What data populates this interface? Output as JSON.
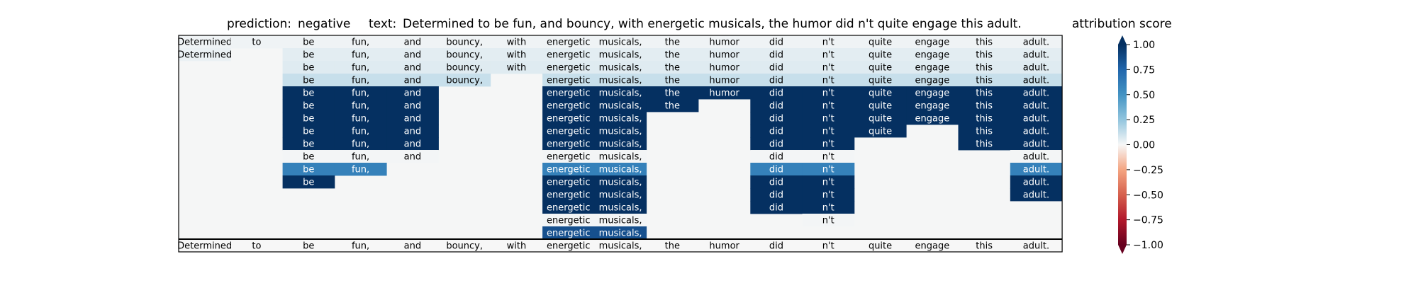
{
  "chart_data": {
    "type": "heatmap",
    "title": {
      "prediction_label": "prediction:",
      "prediction_value": "negative",
      "text_label": "text:",
      "text_value": "Determined to be fun, and bouncy, with energetic musicals, the humor did n't quite engage this adult."
    },
    "tokens": [
      "Determined",
      "to",
      "be",
      "fun,",
      "and",
      "bouncy,",
      "with",
      "energetic",
      "musicals,",
      "the",
      "humor",
      "did",
      "n't",
      "quite",
      "engage",
      "this",
      "adult."
    ],
    "rows": [
      [
        0.02,
        0.02,
        0.02,
        0.02,
        0.02,
        0.02,
        0.02,
        0.02,
        0.02,
        0.02,
        0.02,
        0.02,
        0.02,
        0.02,
        0.02,
        0.02,
        0.02
      ],
      [
        0.03,
        null,
        0.05,
        0.05,
        0.05,
        0.05,
        0.05,
        0.05,
        0.05,
        0.05,
        0.05,
        0.05,
        0.05,
        0.05,
        0.05,
        0.05,
        0.05
      ],
      [
        null,
        null,
        0.06,
        0.06,
        0.06,
        0.06,
        0.06,
        0.06,
        0.06,
        0.06,
        0.06,
        0.06,
        0.06,
        0.06,
        0.06,
        0.06,
        0.06
      ],
      [
        null,
        null,
        0.12,
        0.12,
        0.12,
        0.12,
        null,
        0.12,
        0.12,
        0.12,
        0.12,
        0.12,
        0.12,
        0.12,
        0.12,
        0.12,
        0.12
      ],
      [
        null,
        null,
        1.0,
        1.0,
        1.0,
        null,
        null,
        1.0,
        1.0,
        1.0,
        1.0,
        1.0,
        1.0,
        1.0,
        1.0,
        1.0,
        1.0
      ],
      [
        null,
        null,
        1.0,
        1.0,
        1.0,
        null,
        null,
        1.0,
        1.0,
        1.0,
        null,
        1.0,
        1.0,
        1.0,
        1.0,
        1.0,
        1.0
      ],
      [
        null,
        null,
        1.0,
        1.0,
        1.0,
        null,
        null,
        1.0,
        1.0,
        null,
        null,
        1.0,
        1.0,
        1.0,
        1.0,
        1.0,
        1.0
      ],
      [
        null,
        null,
        1.0,
        1.0,
        1.0,
        null,
        null,
        1.0,
        1.0,
        null,
        null,
        1.0,
        1.0,
        1.0,
        null,
        1.0,
        1.0
      ],
      [
        null,
        null,
        1.0,
        1.0,
        1.0,
        null,
        null,
        1.0,
        1.0,
        null,
        null,
        1.0,
        1.0,
        null,
        null,
        1.0,
        1.0
      ],
      [
        null,
        null,
        0.01,
        0.01,
        0.01,
        null,
        null,
        0.01,
        0.01,
        null,
        null,
        0.01,
        0.01,
        null,
        null,
        null,
        0.01
      ],
      [
        null,
        null,
        0.6,
        0.6,
        null,
        null,
        null,
        0.6,
        0.6,
        null,
        null,
        0.6,
        0.6,
        null,
        null,
        null,
        0.6
      ],
      [
        null,
        null,
        1.0,
        null,
        null,
        null,
        null,
        1.0,
        1.0,
        null,
        null,
        1.0,
        1.0,
        null,
        null,
        null,
        1.0
      ],
      [
        null,
        null,
        null,
        null,
        null,
        null,
        null,
        1.0,
        1.0,
        null,
        null,
        1.0,
        1.0,
        null,
        null,
        null,
        1.0
      ],
      [
        null,
        null,
        null,
        null,
        null,
        null,
        null,
        1.0,
        1.0,
        null,
        null,
        1.0,
        1.0,
        null,
        null,
        null,
        null
      ],
      [
        null,
        null,
        null,
        null,
        null,
        null,
        null,
        0.01,
        0.01,
        null,
        null,
        null,
        0.01,
        null,
        null,
        null,
        null
      ],
      [
        null,
        null,
        null,
        null,
        null,
        null,
        null,
        0.85,
        0.85,
        null,
        null,
        null,
        null,
        null,
        null,
        null,
        null
      ]
    ],
    "bottom_row": [
      "Determined",
      "to",
      "be",
      "fun,",
      "and",
      "bouncy,",
      "with",
      "energetic",
      "musicals,",
      "the",
      "humor",
      "did",
      "n't",
      "quite",
      "engage",
      "this",
      "adult."
    ],
    "colorbar": {
      "label": "attribution score",
      "range": [
        -1.0,
        1.0
      ],
      "ticks": [
        "1.00",
        "0.75",
        "0.50",
        "0.25",
        "0.00",
        "−0.25",
        "−0.50",
        "−0.75",
        "−1.00"
      ],
      "colormap": "RdBu"
    }
  }
}
